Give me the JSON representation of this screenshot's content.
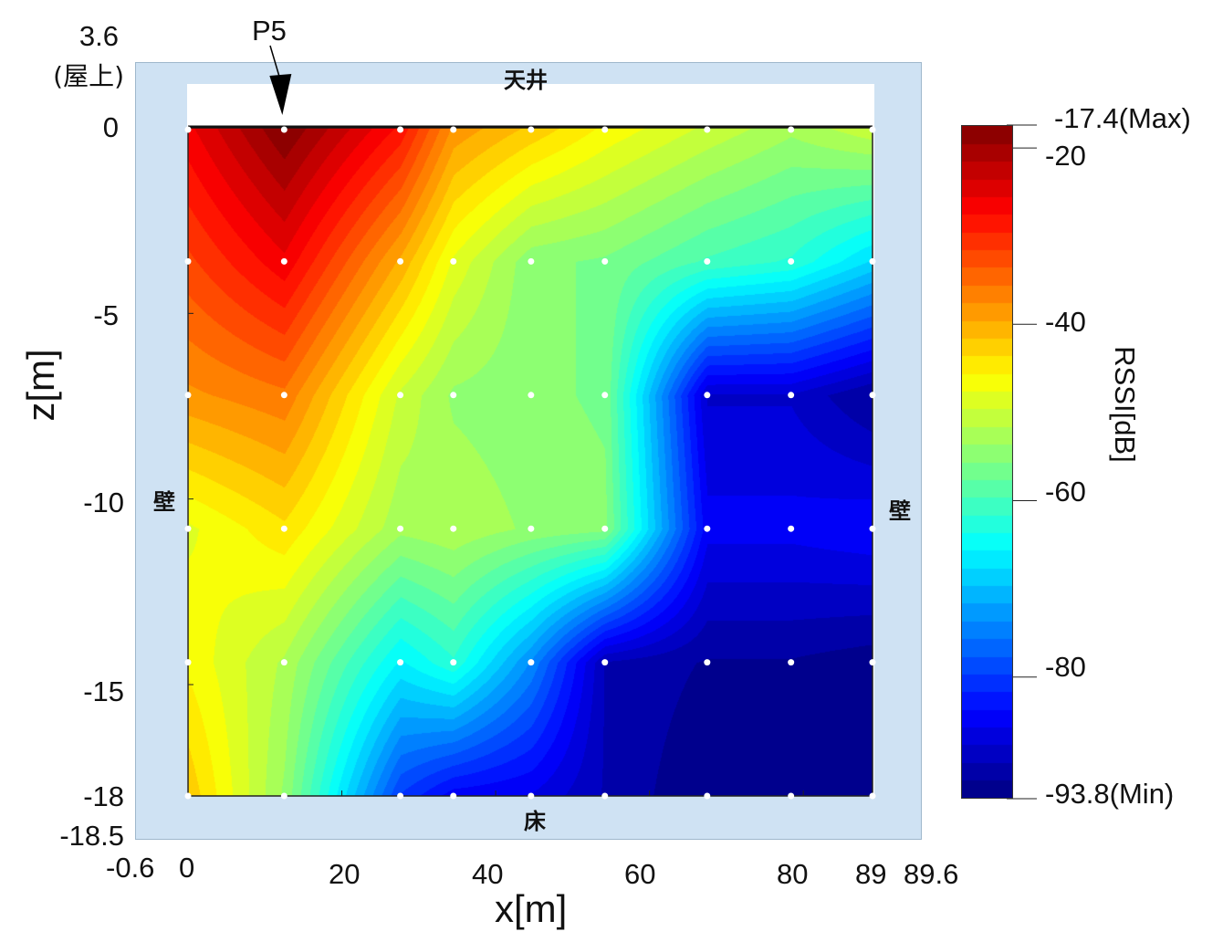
{
  "chart_data": {
    "type": "heatmap",
    "title": "",
    "xlabel": "x[m]",
    "ylabel": "z[m]",
    "colorbar_label": "RSSI[dB]",
    "xlim": [
      0,
      89
    ],
    "ylim": [
      -18,
      0
    ],
    "x_ticks": [
      "-0.6",
      "0",
      "20",
      "40",
      "60",
      "80",
      "89",
      "89.6"
    ],
    "y_ticks": [
      "3.6",
      "(屋上)",
      "0",
      "-5",
      "-10",
      "-15",
      "-18",
      "-18.5"
    ],
    "colorbar": {
      "min": -93.8,
      "max": -17.4,
      "ticks": [
        "-17.4(Max)",
        "-20",
        "-40",
        "-60",
        "-80",
        "-93.8(Min)"
      ],
      "tick_values": [
        -17.4,
        -20,
        -40,
        -60,
        -80,
        -93.8
      ],
      "colormap": "jet"
    },
    "annotations": {
      "marker": "P5",
      "marker_x": 12.5,
      "marker_z": 0,
      "ceiling": "天井",
      "floor": "床",
      "wall_left": "壁",
      "wall_right": "壁"
    },
    "x": [
      0,
      12.5,
      27.6,
      34.5,
      44.6,
      54.2,
      67.5,
      78.4,
      89
    ],
    "z": [
      0,
      -3.6,
      -7.2,
      -10.8,
      -14.4,
      -18
    ],
    "values": [
      [
        -26,
        -17.4,
        -28,
        -38,
        -42,
        -46,
        -50,
        -53,
        -50
      ],
      [
        -32,
        -26,
        -40,
        -48,
        -55,
        -56,
        -60,
        -62,
        -68
      ],
      [
        -38,
        -36,
        -50,
        -54,
        -55,
        -56,
        -88,
        -88,
        -92
      ],
      [
        -48,
        -44,
        -53,
        -52,
        -54,
        -55,
        -85,
        -85,
        -84
      ],
      [
        -46,
        -52,
        -66,
        -62,
        -74,
        -90,
        -92,
        -92,
        -93
      ],
      [
        -42,
        -54,
        -80,
        -85,
        -86,
        -90,
        -93.8,
        -92,
        -93
      ]
    ]
  },
  "colors": {
    "frame": "#cfe2f3",
    "points": "#ffffff"
  }
}
